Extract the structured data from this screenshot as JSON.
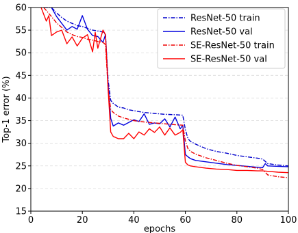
{
  "chart_data": {
    "type": "line",
    "xlabel": "epochs",
    "ylabel": "Top-1 error (%)",
    "xlim": [
      0,
      100
    ],
    "ylim": [
      15,
      60
    ],
    "xticks": [
      0,
      20,
      40,
      60,
      80,
      100
    ],
    "yticks": [
      15,
      20,
      25,
      30,
      35,
      40,
      45,
      50,
      55,
      60
    ],
    "grid": "horizontal dashed",
    "legend_position": "top-right",
    "series": [
      {
        "name": "ResNet-50 train",
        "color": "#0000cc",
        "style": "dashdot",
        "x": [
          5,
          8,
          10,
          12,
          14,
          16,
          18,
          20,
          22,
          24,
          26,
          28,
          29,
          30,
          31,
          32,
          34,
          36,
          38,
          40,
          44,
          48,
          52,
          56,
          59,
          60,
          61,
          62,
          64,
          68,
          72,
          76,
          80,
          84,
          88,
          90,
          92,
          96,
          100
        ],
        "y": [
          60,
          60,
          58.8,
          57.8,
          57.0,
          56.5,
          56.0,
          55.8,
          55.4,
          55.0,
          54.8,
          54.6,
          54.0,
          44.0,
          39.5,
          38.8,
          38.0,
          37.8,
          37.4,
          37.2,
          36.8,
          36.6,
          36.4,
          36.3,
          36.2,
          33.0,
          31.0,
          30.4,
          29.8,
          28.8,
          28.2,
          27.8,
          27.3,
          27.0,
          26.7,
          26.5,
          25.5,
          25.2,
          25.0
        ]
      },
      {
        "name": "ResNet-50 val",
        "color": "#0000dd",
        "style": "solid",
        "x": [
          8,
          10,
          12,
          14,
          16,
          18,
          20,
          22,
          24,
          26,
          28,
          29,
          30,
          31,
          32,
          34,
          36,
          38,
          40,
          42,
          44,
          46,
          48,
          50,
          52,
          54,
          56,
          58,
          59,
          60,
          61,
          62,
          64,
          68,
          72,
          76,
          80,
          84,
          88,
          90,
          91,
          92,
          96,
          100
        ],
        "y": [
          60,
          58.0,
          56.5,
          55.0,
          55.8,
          55.2,
          58.2,
          55.2,
          53.8,
          53.6,
          52.3,
          54.0,
          43.0,
          35.5,
          33.8,
          34.5,
          34.0,
          34.6,
          35.2,
          34.8,
          36.5,
          34.2,
          34.5,
          34.3,
          35.4,
          33.6,
          35.8,
          33.2,
          34.0,
          27.5,
          27.0,
          26.6,
          26.2,
          25.9,
          25.6,
          25.3,
          25.1,
          24.9,
          24.7,
          24.6,
          25.5,
          25.0,
          24.9,
          24.8
        ]
      },
      {
        "name": "SE-ResNet-50 train",
        "color": "#ee0000",
        "style": "dashdot",
        "x": [
          5,
          8,
          10,
          12,
          14,
          16,
          18,
          20,
          22,
          24,
          26,
          28,
          29,
          30,
          31,
          32,
          34,
          36,
          38,
          40,
          44,
          48,
          52,
          56,
          59,
          60,
          61,
          62,
          64,
          68,
          72,
          76,
          80,
          84,
          88,
          90,
          92,
          96,
          100
        ],
        "y": [
          60,
          58.0,
          56.6,
          55.6,
          54.6,
          54.0,
          53.6,
          53.4,
          53.0,
          52.8,
          52.5,
          52.3,
          51.8,
          42.0,
          37.5,
          36.8,
          36.0,
          35.6,
          35.3,
          35.0,
          34.7,
          34.5,
          34.3,
          34.1,
          34.0,
          30.5,
          28.8,
          28.2,
          27.6,
          26.8,
          26.2,
          25.6,
          25.1,
          24.8,
          24.5,
          24.2,
          23.0,
          22.6,
          22.4
        ]
      },
      {
        "name": "SE-ResNet-50 val",
        "color": "#ff0000",
        "style": "solid",
        "x": [
          4,
          6,
          7,
          8,
          10,
          12,
          14,
          16,
          18,
          20,
          22,
          24,
          25,
          26,
          28,
          29,
          30,
          31,
          32,
          34,
          36,
          38,
          40,
          42,
          44,
          46,
          48,
          50,
          52,
          54,
          56,
          58,
          59,
          60,
          61,
          62,
          64,
          68,
          72,
          76,
          80,
          84,
          88,
          90,
          92,
          96,
          100
        ],
        "y": [
          60,
          57.0,
          58.2,
          53.8,
          54.6,
          55.0,
          52.0,
          53.5,
          51.5,
          53.2,
          54.0,
          50.2,
          54.5,
          51.0,
          55.0,
          54.0,
          42.0,
          32.5,
          31.5,
          31.0,
          31.0,
          32.2,
          31.0,
          32.5,
          31.8,
          33.2,
          32.4,
          33.6,
          31.8,
          33.4,
          31.8,
          32.4,
          33.0,
          25.8,
          25.2,
          25.0,
          24.8,
          24.5,
          24.3,
          24.2,
          24.0,
          24.0,
          23.9,
          23.9,
          23.8,
          23.6,
          23.5
        ]
      }
    ]
  }
}
